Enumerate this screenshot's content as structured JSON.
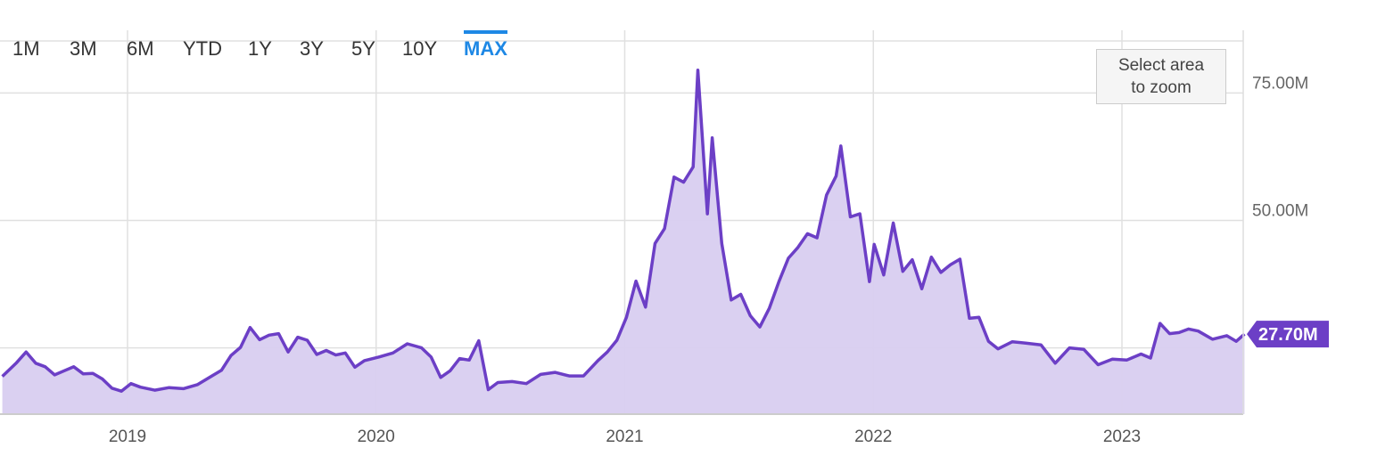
{
  "range_selector": {
    "tabs": [
      "1M",
      "3M",
      "6M",
      "YTD",
      "1Y",
      "3Y",
      "5Y",
      "10Y",
      "MAX"
    ],
    "active": "MAX"
  },
  "zoom_button": {
    "line1": "Select area",
    "line2": "to zoom"
  },
  "colors": {
    "series": "#6c3fc6",
    "fill": "#d8cdf0",
    "accent": "#1e88e5",
    "grid": "#e0e0e0"
  },
  "chart_data": {
    "type": "area",
    "title": "",
    "xlabel": "",
    "ylabel": "",
    "x_tick_labels": [
      "2019",
      "2020",
      "2021",
      "2022",
      "2023"
    ],
    "y_tick_labels": [
      "50.00M",
      "75.00M"
    ],
    "ylim_millions": [
      12,
      88
    ],
    "grid": true,
    "last_value_label": "27.70M",
    "series": [
      {
        "unit": "millions",
        "points": [
          [
            "2018-07-01",
            19.4
          ],
          [
            "2018-07-22",
            22.1
          ],
          [
            "2018-08-05",
            24.2
          ],
          [
            "2018-08-19",
            22.0
          ],
          [
            "2018-09-02",
            21.3
          ],
          [
            "2018-09-16",
            19.7
          ],
          [
            "2018-09-30",
            20.5
          ],
          [
            "2018-10-14",
            21.3
          ],
          [
            "2018-10-28",
            19.9
          ],
          [
            "2018-11-11",
            20.0
          ],
          [
            "2018-11-25",
            18.9
          ],
          [
            "2018-12-09",
            17.1
          ],
          [
            "2018-12-23",
            16.5
          ],
          [
            "2019-01-06",
            18.0
          ],
          [
            "2019-01-20",
            17.3
          ],
          [
            "2019-02-10",
            16.7
          ],
          [
            "2019-03-03",
            17.2
          ],
          [
            "2019-03-24",
            17.0
          ],
          [
            "2019-04-14",
            17.8
          ],
          [
            "2019-05-05",
            19.5
          ],
          [
            "2019-05-19",
            20.6
          ],
          [
            "2019-06-02",
            23.5
          ],
          [
            "2019-06-16",
            25.1
          ],
          [
            "2019-06-30",
            29.0
          ],
          [
            "2019-07-14",
            26.6
          ],
          [
            "2019-07-28",
            27.5
          ],
          [
            "2019-08-11",
            27.8
          ],
          [
            "2019-08-25",
            24.2
          ],
          [
            "2019-09-08",
            27.1
          ],
          [
            "2019-09-22",
            26.5
          ],
          [
            "2019-10-06",
            23.7
          ],
          [
            "2019-10-20",
            24.5
          ],
          [
            "2019-11-03",
            23.6
          ],
          [
            "2019-11-17",
            24.0
          ],
          [
            "2019-12-01",
            21.2
          ],
          [
            "2019-12-15",
            22.5
          ],
          [
            "2020-01-05",
            23.2
          ],
          [
            "2020-01-26",
            24.0
          ],
          [
            "2020-02-16",
            25.8
          ],
          [
            "2020-03-08",
            25.0
          ],
          [
            "2020-03-22",
            23.2
          ],
          [
            "2020-04-05",
            19.2
          ],
          [
            "2020-04-19",
            20.5
          ],
          [
            "2020-05-03",
            22.9
          ],
          [
            "2020-05-17",
            22.6
          ],
          [
            "2020-05-31",
            26.4
          ],
          [
            "2020-06-14",
            16.8
          ],
          [
            "2020-06-28",
            18.2
          ],
          [
            "2020-07-19",
            18.4
          ],
          [
            "2020-08-09",
            18.0
          ],
          [
            "2020-08-30",
            19.8
          ],
          [
            "2020-09-20",
            20.2
          ],
          [
            "2020-10-11",
            19.5
          ],
          [
            "2020-11-01",
            19.5
          ],
          [
            "2020-11-22",
            22.5
          ],
          [
            "2020-12-06",
            24.2
          ],
          [
            "2020-12-20",
            26.5
          ],
          [
            "2021-01-03",
            31.0
          ],
          [
            "2021-01-17",
            38.1
          ],
          [
            "2021-01-31",
            33.0
          ],
          [
            "2021-02-14",
            45.5
          ],
          [
            "2021-02-28",
            48.4
          ],
          [
            "2021-03-14",
            58.5
          ],
          [
            "2021-03-28",
            57.5
          ],
          [
            "2021-04-11",
            60.5
          ],
          [
            "2021-04-18",
            79.5
          ],
          [
            "2021-05-02",
            51.3
          ],
          [
            "2021-05-09",
            66.2
          ],
          [
            "2021-05-23",
            45.5
          ],
          [
            "2021-06-06",
            34.4
          ],
          [
            "2021-06-20",
            35.5
          ],
          [
            "2021-07-04",
            31.3
          ],
          [
            "2021-07-18",
            29.1
          ],
          [
            "2021-08-01",
            32.8
          ],
          [
            "2021-08-15",
            38.0
          ],
          [
            "2021-08-29",
            42.6
          ],
          [
            "2021-09-12",
            44.7
          ],
          [
            "2021-09-26",
            47.4
          ],
          [
            "2021-10-10",
            46.6
          ],
          [
            "2021-10-24",
            55.0
          ],
          [
            "2021-11-07",
            58.7
          ],
          [
            "2021-11-14",
            64.6
          ],
          [
            "2021-11-28",
            50.7
          ],
          [
            "2021-12-12",
            51.3
          ],
          [
            "2021-12-26",
            38.0
          ],
          [
            "2022-01-02",
            45.3
          ],
          [
            "2022-01-16",
            39.3
          ],
          [
            "2022-01-30",
            49.5
          ],
          [
            "2022-02-13",
            40.0
          ],
          [
            "2022-02-27",
            42.3
          ],
          [
            "2022-03-13",
            36.6
          ],
          [
            "2022-03-27",
            42.8
          ],
          [
            "2022-04-10",
            39.8
          ],
          [
            "2022-04-24",
            41.3
          ],
          [
            "2022-05-08",
            42.4
          ],
          [
            "2022-05-22",
            30.8
          ],
          [
            "2022-06-05",
            31.0
          ],
          [
            "2022-06-19",
            26.3
          ],
          [
            "2022-07-03",
            24.8
          ],
          [
            "2022-07-24",
            26.2
          ],
          [
            "2022-08-14",
            25.9
          ],
          [
            "2022-09-04",
            25.6
          ],
          [
            "2022-09-25",
            22.0
          ],
          [
            "2022-10-16",
            25.0
          ],
          [
            "2022-11-06",
            24.7
          ],
          [
            "2022-11-27",
            21.7
          ],
          [
            "2022-12-18",
            22.8
          ],
          [
            "2023-01-08",
            22.6
          ],
          [
            "2023-01-29",
            23.8
          ],
          [
            "2023-02-12",
            23.0
          ],
          [
            "2023-02-26",
            29.8
          ],
          [
            "2023-03-12",
            27.8
          ],
          [
            "2023-03-26",
            28.0
          ],
          [
            "2023-04-09",
            28.7
          ],
          [
            "2023-04-23",
            28.3
          ],
          [
            "2023-05-14",
            26.7
          ],
          [
            "2023-06-04",
            27.4
          ],
          [
            "2023-06-18",
            26.3
          ],
          [
            "2023-06-30",
            27.7
          ]
        ]
      }
    ]
  }
}
